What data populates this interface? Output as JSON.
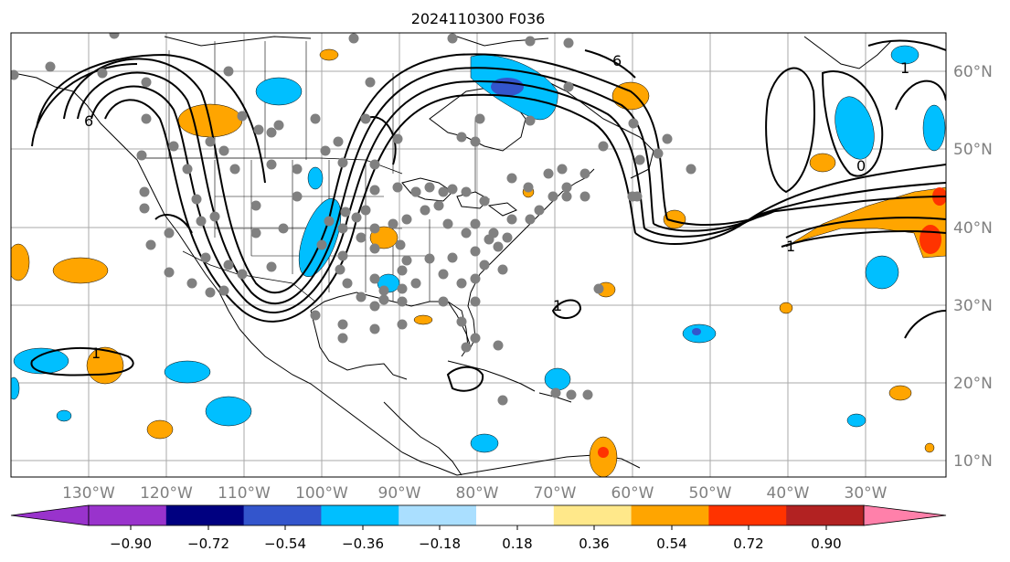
{
  "title": "2024110300 F036",
  "map": {
    "lon_labels": [
      "130°W",
      "120°W",
      "110°W",
      "100°W",
      "90°W",
      "80°W",
      "70°W",
      "60°W",
      "50°W",
      "40°W",
      "30°W"
    ],
    "lat_labels": [
      "60°N",
      "50°N",
      "40°N",
      "30°N",
      "20°N",
      "10°N"
    ],
    "contour_labels": [
      "6",
      "6",
      "1",
      "1",
      "1",
      "1",
      "0"
    ]
  },
  "colorbar": {
    "ticks": [
      "−0.90",
      "−0.72",
      "−0.54",
      "−0.36",
      "−0.18",
      "0.18",
      "0.36",
      "0.54",
      "0.72",
      "0.90"
    ],
    "colors": [
      "#9933cc",
      "#000080",
      "#3355cc",
      "#00bfff",
      "#aadfff",
      "#ffffff",
      "#ffe88a",
      "#ffa500",
      "#ff3300",
      "#b22222"
    ],
    "extend_low_color": "#9933cc",
    "extend_high_color": "#ff80aa"
  },
  "colors": {
    "station_dot": "#808080",
    "contour": "#000000",
    "grid": "#aaaaaa",
    "tick_label": "#808080"
  }
}
